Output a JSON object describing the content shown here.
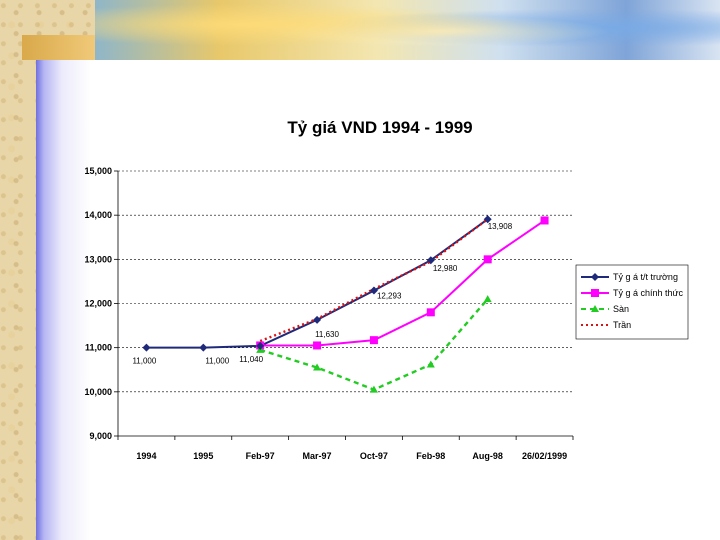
{
  "slide": {
    "title": "Tỷ giá VND 1994 - 1999"
  },
  "chart_data": {
    "type": "line",
    "title": "Tỷ giá VND 1994 - 1999",
    "xlabel": "",
    "ylabel": "",
    "ylim": [
      9000,
      15000
    ],
    "yticks": [
      9000,
      10000,
      11000,
      12000,
      13000,
      14000,
      15000
    ],
    "ytick_labels": [
      "9,000",
      "10,000",
      "11,000",
      "12,000",
      "13,000",
      "14,000",
      "15,000"
    ],
    "categories": [
      "1994",
      "1995",
      "Feb-97",
      "Mar-97",
      "Oct-97",
      "Feb-98",
      "Aug-98",
      "26/02/1999"
    ],
    "grid": true,
    "legend_position": "right",
    "series": [
      {
        "name": "Tỷ g á t/t trường",
        "color": "#1f2a7a",
        "marker": "diamond",
        "dash": "solid",
        "values": [
          11000,
          11000,
          11040,
          11630,
          12293,
          12980,
          13908,
          null
        ]
      },
      {
        "name": "Tỷ g á chính thức",
        "color": "#ff00ff",
        "marker": "square",
        "dash": "solid",
        "values": [
          null,
          null,
          11050,
          11050,
          11170,
          11800,
          13000,
          13880
        ]
      },
      {
        "name": "Sàn",
        "color": "#22cc22",
        "marker": "triangle",
        "dash": "dash",
        "values": [
          null,
          null,
          10950,
          10550,
          10050,
          10620,
          12100,
          null
        ]
      },
      {
        "name": "Trần",
        "color": "#dd1111",
        "marker": "none",
        "dash": "dot",
        "values": [
          null,
          null,
          11150,
          11650,
          12330,
          12950,
          13910,
          null
        ]
      }
    ],
    "annotations": [
      {
        "series": 0,
        "index": 0,
        "text": "11,000"
      },
      {
        "series": 0,
        "index": 1,
        "text": "11,000"
      },
      {
        "series": 0,
        "index": 2,
        "text": "11,040"
      },
      {
        "series": 0,
        "index": 3,
        "text": "11,630"
      },
      {
        "series": 0,
        "index": 4,
        "text": "12,293"
      },
      {
        "series": 0,
        "index": 5,
        "text": "12,980"
      },
      {
        "series": 0,
        "index": 6,
        "text": "13,908"
      }
    ]
  }
}
